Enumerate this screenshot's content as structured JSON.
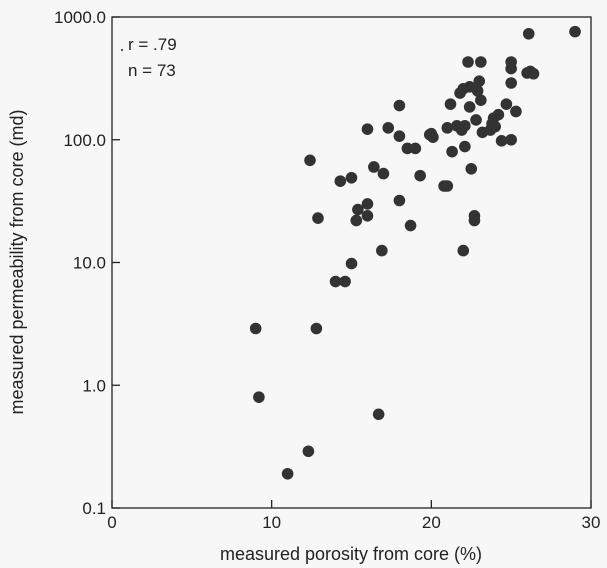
{
  "chart_data": {
    "type": "scatter",
    "title": "",
    "xlabel": "measured porosity from core (%)",
    "ylabel": "measured permeability from core (md)",
    "xlim": [
      0,
      30
    ],
    "ylim": [
      0.1,
      1000
    ],
    "yscale": "log",
    "grid": false,
    "x_ticks": [
      0,
      10,
      20,
      30
    ],
    "x_tick_labels": [
      "0",
      "10",
      "20",
      "30"
    ],
    "y_ticks": [
      0.1,
      1,
      10,
      100,
      1000
    ],
    "y_tick_labels": [
      "0.1",
      "1.0",
      "10.0",
      "100.0",
      "1000.0"
    ],
    "annotations": [
      "r = .79",
      "n = 73"
    ],
    "marker_color": "#333333",
    "points": [
      {
        "x": 9.0,
        "y": 2.9
      },
      {
        "x": 9.2,
        "y": 0.8
      },
      {
        "x": 11.0,
        "y": 0.19
      },
      {
        "x": 12.3,
        "y": 0.29
      },
      {
        "x": 12.8,
        "y": 2.9
      },
      {
        "x": 16.7,
        "y": 0.58
      },
      {
        "x": 12.4,
        "y": 68
      },
      {
        "x": 12.9,
        "y": 23
      },
      {
        "x": 14.0,
        "y": 7
      },
      {
        "x": 14.6,
        "y": 7
      },
      {
        "x": 15.0,
        "y": 9.8
      },
      {
        "x": 15.3,
        "y": 22
      },
      {
        "x": 15.4,
        "y": 27
      },
      {
        "x": 16.0,
        "y": 30
      },
      {
        "x": 16.0,
        "y": 24
      },
      {
        "x": 14.3,
        "y": 46
      },
      {
        "x": 15.0,
        "y": 49
      },
      {
        "x": 16.0,
        "y": 122
      },
      {
        "x": 16.4,
        "y": 60
      },
      {
        "x": 16.9,
        "y": 12.5
      },
      {
        "x": 17.0,
        "y": 53
      },
      {
        "x": 17.3,
        "y": 125
      },
      {
        "x": 18.0,
        "y": 190
      },
      {
        "x": 18.0,
        "y": 32
      },
      {
        "x": 18.0,
        "y": 107
      },
      {
        "x": 18.5,
        "y": 85
      },
      {
        "x": 18.7,
        "y": 20
      },
      {
        "x": 19.0,
        "y": 85
      },
      {
        "x": 19.3,
        "y": 51
      },
      {
        "x": 19.9,
        "y": 110
      },
      {
        "x": 20.1,
        "y": 105
      },
      {
        "x": 20.8,
        "y": 42
      },
      {
        "x": 21.0,
        "y": 42
      },
      {
        "x": 21.0,
        "y": 125
      },
      {
        "x": 21.2,
        "y": 195
      },
      {
        "x": 21.3,
        "y": 80
      },
      {
        "x": 21.6,
        "y": 130
      },
      {
        "x": 21.8,
        "y": 240
      },
      {
        "x": 21.9,
        "y": 120
      },
      {
        "x": 22.0,
        "y": 260
      },
      {
        "x": 22.0,
        "y": 12.5
      },
      {
        "x": 22.1,
        "y": 88
      },
      {
        "x": 22.1,
        "y": 130
      },
      {
        "x": 22.3,
        "y": 430
      },
      {
        "x": 22.4,
        "y": 185
      },
      {
        "x": 22.5,
        "y": 58
      },
      {
        "x": 22.7,
        "y": 24
      },
      {
        "x": 22.7,
        "y": 22
      },
      {
        "x": 22.8,
        "y": 145
      },
      {
        "x": 22.9,
        "y": 250
      },
      {
        "x": 23.0,
        "y": 300
      },
      {
        "x": 23.1,
        "y": 210
      },
      {
        "x": 23.1,
        "y": 430
      },
      {
        "x": 23.2,
        "y": 115
      },
      {
        "x": 23.7,
        "y": 120
      },
      {
        "x": 23.8,
        "y": 135
      },
      {
        "x": 23.9,
        "y": 150
      },
      {
        "x": 24.0,
        "y": 128
      },
      {
        "x": 24.2,
        "y": 160
      },
      {
        "x": 24.4,
        "y": 98
      },
      {
        "x": 24.7,
        "y": 195
      },
      {
        "x": 25.0,
        "y": 430
      },
      {
        "x": 25.0,
        "y": 380
      },
      {
        "x": 25.0,
        "y": 100
      },
      {
        "x": 25.0,
        "y": 290
      },
      {
        "x": 25.3,
        "y": 170
      },
      {
        "x": 26.0,
        "y": 350
      },
      {
        "x": 26.1,
        "y": 730
      },
      {
        "x": 26.2,
        "y": 360
      },
      {
        "x": 26.4,
        "y": 345
      },
      {
        "x": 29.0,
        "y": 760
      },
      {
        "x": 22.4,
        "y": 270
      },
      {
        "x": 20.0,
        "y": 112
      }
    ]
  }
}
